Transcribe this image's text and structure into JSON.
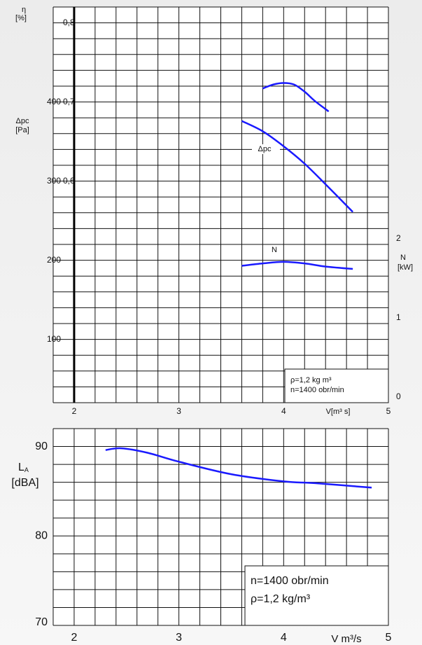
{
  "chart_data": [
    {
      "type": "line",
      "x_label": "V[m³ s]",
      "y_label": "Δpc",
      "y_unit": "[Pa]",
      "y2_label": "N",
      "y2_unit": "[kW]",
      "y3_label": "η",
      "y3_unit": "[%]",
      "xlim": [
        1.8,
        5
      ],
      "xticks": [
        2,
        3,
        4,
        5
      ],
      "ylim": [
        20,
        520
      ],
      "yticks": [
        100,
        200,
        300,
        400
      ],
      "y2lim": [
        0,
        5
      ],
      "y2ticks": [
        0,
        1,
        2
      ],
      "y3lim": [
        0.32,
        0.82
      ],
      "y3ticks": [
        {
          "value": 0.6,
          "label": "0,6"
        },
        {
          "value": 0.7,
          "label": "0,7"
        },
        {
          "value": 0.8,
          "label": "0,8"
        }
      ],
      "grid_step": {
        "x": 0.2,
        "y": 20
      },
      "reference_x": 2,
      "annotation": [
        "ρ=1,2 kg m³",
        "n=1400 obr/min"
      ],
      "series": [
        {
          "name": "η",
          "axis": "y3",
          "color": "#1a1aff",
          "x": [
            3.8,
            3.9,
            4.0,
            4.1,
            4.2,
            4.3,
            4.43
          ],
          "values": [
            0.717,
            0.722,
            0.724,
            0.722,
            0.713,
            0.701,
            0.688
          ]
        },
        {
          "name": "Δpc",
          "label": "Δpc",
          "axis": "y",
          "color": "#1a1aff",
          "x": [
            3.6,
            3.8,
            4.0,
            4.2,
            4.4,
            4.66
          ],
          "values": [
            376,
            363,
            344,
            322,
            296,
            261
          ]
        },
        {
          "name": "N",
          "label": "N",
          "axis": "y2",
          "color": "#1a1aff",
          "x": [
            3.6,
            3.8,
            4.0,
            4.2,
            4.4,
            4.66
          ],
          "values": [
            1.73,
            1.76,
            1.78,
            1.76,
            1.72,
            1.69
          ]
        }
      ]
    },
    {
      "type": "line",
      "x_label": "V m³/s",
      "y_label_main": "L",
      "y_label_sub": "A",
      "y_unit": "[dBA]",
      "xlim": [
        1.8,
        5
      ],
      "xticks": [
        2,
        3,
        4,
        5
      ],
      "ylim": [
        70,
        92
      ],
      "yticks": [
        70,
        80,
        90
      ],
      "grid_step": {
        "x": 0.2,
        "y": 2
      },
      "annotation": [
        "n=1400 obr/min",
        "ρ=1,2 kg/m³"
      ],
      "series": [
        {
          "name": "LA",
          "color": "#1a1aff",
          "x": [
            2.3,
            2.45,
            2.7,
            3.0,
            3.5,
            4.0,
            4.3,
            4.84
          ],
          "values": [
            89.6,
            89.8,
            89.3,
            88.3,
            86.9,
            86.1,
            85.9,
            85.4
          ]
        }
      ]
    }
  ]
}
